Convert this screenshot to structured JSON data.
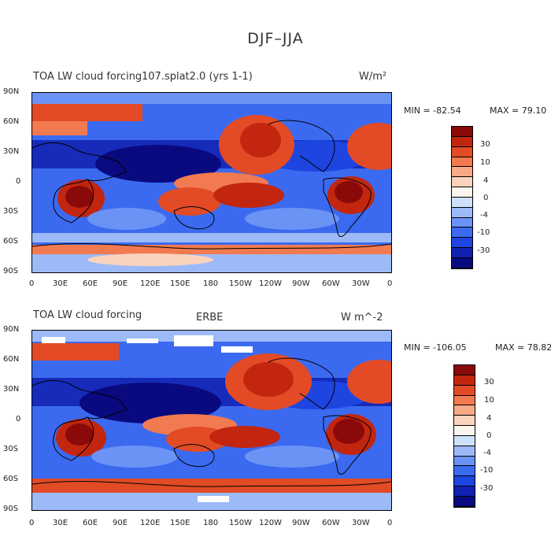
{
  "figure_title": "DJF–JJA",
  "colors": [
    "#0a0a80",
    "#1020b0",
    "#1e45e0",
    "#3b6af0",
    "#6a93f5",
    "#9dbaf8",
    "#cfe0fb",
    "#f8f4ee",
    "#fbd3bd",
    "#f8a986",
    "#f27a50",
    "#e24b26",
    "#c2260f",
    "#8a0a0a"
  ],
  "panels": [
    {
      "variable": "TOA LW cloud forcing",
      "source": "107.splat2.0 (yrs 1-1)",
      "units": "W/m²",
      "min_text": "MIN = -82.54",
      "max_text": "MAX =  79.10",
      "colorbar_labels": [
        "30",
        "10",
        "4",
        "0",
        "-4",
        "-10",
        "-30"
      ]
    },
    {
      "variable": "TOA LW cloud forcing",
      "source": "ERBE",
      "units": "W m^-2",
      "min_text": "MIN = -106.05",
      "max_text": "MAX =  78.82",
      "colorbar_labels": [
        "30",
        "10",
        "4",
        "0",
        "-4",
        "-10",
        "-30"
      ]
    }
  ],
  "lat_labels": [
    "90N",
    "60N",
    "30N",
    "0",
    "30S",
    "60S",
    "90S"
  ],
  "lon_labels": [
    "0",
    "30E",
    "60E",
    "90E",
    "120E",
    "150E",
    "180",
    "150W",
    "120W",
    "90W",
    "60W",
    "30W",
    "0"
  ]
}
